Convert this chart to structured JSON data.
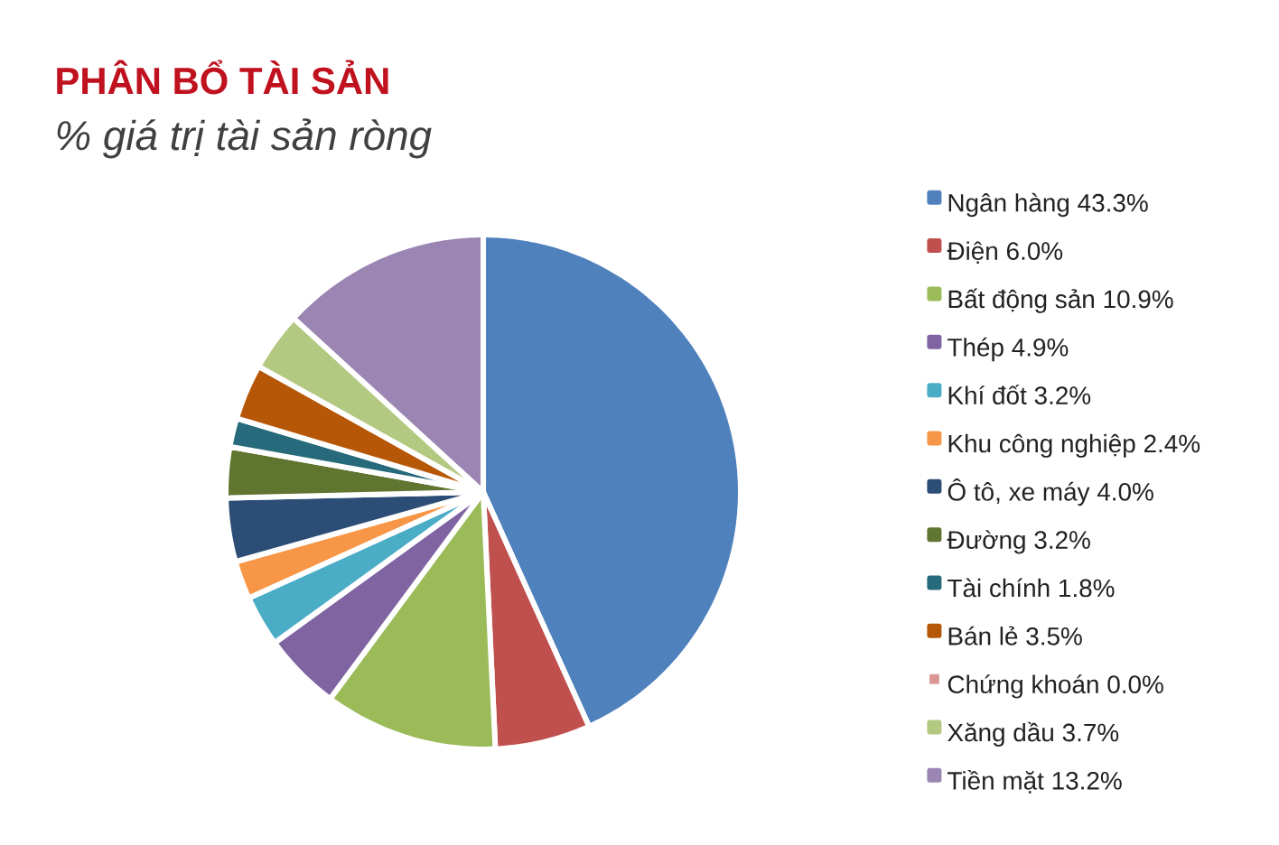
{
  "chart_data": {
    "type": "pie",
    "title": "PHÂN BỔ TÀI SẢN",
    "subtitle": "% giá trị tài sản ròng",
    "categories": [
      "Ngân hàng",
      "Điện",
      "Bất động sản",
      "Thép",
      "Khí đốt",
      "Khu công nghiệp",
      "Ô tô, xe máy",
      "Đường",
      "Tài chính",
      "Bán lẻ",
      "Chứng khoán",
      "Xăng dầu",
      "Tiền mặt"
    ],
    "values": [
      43.3,
      6.0,
      10.9,
      4.9,
      3.2,
      2.4,
      4.0,
      3.2,
      1.8,
      3.5,
      0.0,
      3.7,
      13.2
    ],
    "value_labels": [
      "43.3%",
      "6.0%",
      "10.9%",
      "4.9%",
      "3.2%",
      "2.4%",
      "4.0%",
      "3.2%",
      "1.8%",
      "3.5%",
      "0.0%",
      "3.7%",
      "13.2%"
    ],
    "colors": [
      "#4f81bd",
      "#c0504d",
      "#9bbb59",
      "#8064a2",
      "#4bacc6",
      "#f79646",
      "#2c4d75",
      "#5f7530",
      "#276a7c",
      "#b65708",
      "#d99694",
      "#b3c982",
      "#9b85b3"
    ],
    "legend": "right"
  }
}
